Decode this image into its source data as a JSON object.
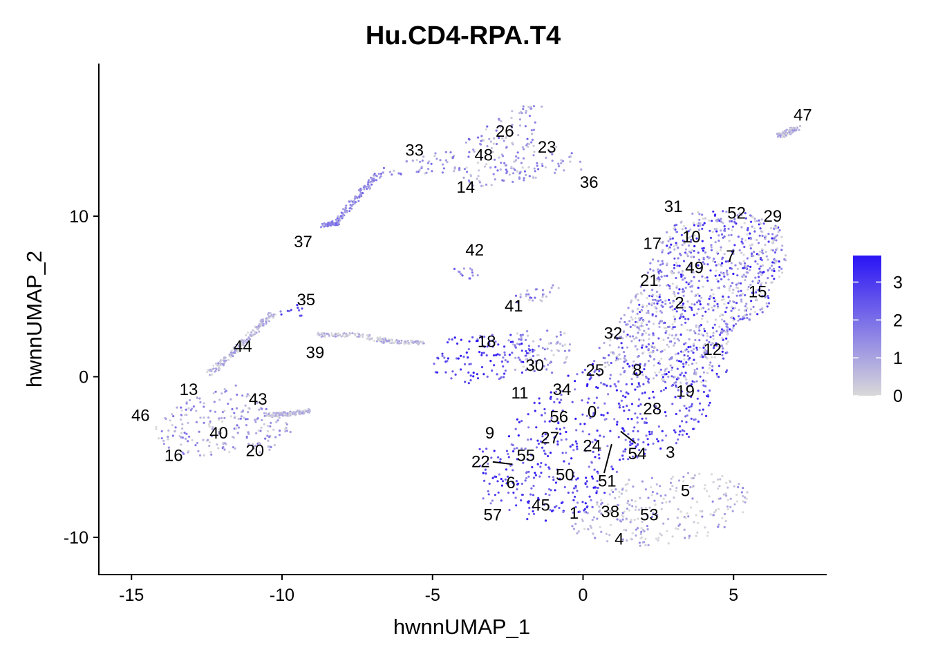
{
  "chart_data": {
    "type": "scatter",
    "title": "Hu.CD4-RPA.T4",
    "xlabel": "hwnnUMAP_1",
    "ylabel": "hwnnUMAP_2",
    "xlim": [
      -16.2,
      8.2
    ],
    "ylim": [
      -12.5,
      19.5
    ],
    "x_ticks": [
      -15,
      -10,
      -5,
      0,
      5
    ],
    "y_ticks": [
      -10,
      0,
      10
    ],
    "grid": false,
    "legend": {
      "position": "right",
      "type": "colorbar",
      "min": 0,
      "max": 3.7,
      "ticks": [
        0,
        1,
        2,
        3
      ],
      "color_low": "#d9d9d9",
      "color_high": "#2a14f5"
    },
    "cluster_labels": [
      {
        "label": "0",
        "x": 0.3,
        "y": -2.2
      },
      {
        "label": "1",
        "x": -0.3,
        "y": -8.5
      },
      {
        "label": "2",
        "x": 3.2,
        "y": 4.6
      },
      {
        "label": "3",
        "x": 2.9,
        "y": -4.7
      },
      {
        "label": "4",
        "x": 1.2,
        "y": -10.1
      },
      {
        "label": "5",
        "x": 3.4,
        "y": -7.1
      },
      {
        "label": "6",
        "x": -2.4,
        "y": -6.6
      },
      {
        "label": "7",
        "x": 4.9,
        "y": 7.5
      },
      {
        "label": "8",
        "x": 1.8,
        "y": 0.4
      },
      {
        "label": "9",
        "x": -3.1,
        "y": -3.5
      },
      {
        "label": "10",
        "x": 3.6,
        "y": 8.7
      },
      {
        "label": "11",
        "x": -2.1,
        "y": -1.0
      },
      {
        "label": "12",
        "x": 4.3,
        "y": 1.7
      },
      {
        "label": "13",
        "x": -13.1,
        "y": -0.8
      },
      {
        "label": "14",
        "x": -3.9,
        "y": 11.8
      },
      {
        "label": "15",
        "x": 5.8,
        "y": 5.3
      },
      {
        "label": "16",
        "x": -13.6,
        "y": -4.9
      },
      {
        "label": "17",
        "x": 2.3,
        "y": 8.3
      },
      {
        "label": "18",
        "x": -3.2,
        "y": 2.2
      },
      {
        "label": "19",
        "x": 3.4,
        "y": -0.9
      },
      {
        "label": "20",
        "x": -10.9,
        "y": -4.6
      },
      {
        "label": "21",
        "x": 2.2,
        "y": 6.0
      },
      {
        "label": "22",
        "x": -3.4,
        "y": -5.3
      },
      {
        "label": "23",
        "x": -1.2,
        "y": 14.3
      },
      {
        "label": "24",
        "x": 0.3,
        "y": -4.3
      },
      {
        "label": "25",
        "x": 0.4,
        "y": 0.4
      },
      {
        "label": "26",
        "x": -2.6,
        "y": 15.3
      },
      {
        "label": "27",
        "x": -1.1,
        "y": -3.8
      },
      {
        "label": "28",
        "x": 2.3,
        "y": -2.0
      },
      {
        "label": "29",
        "x": 6.3,
        "y": 10.0
      },
      {
        "label": "30",
        "x": -1.6,
        "y": 0.7
      },
      {
        "label": "31",
        "x": 3.0,
        "y": 10.6
      },
      {
        "label": "32",
        "x": 1.0,
        "y": 2.7
      },
      {
        "label": "33",
        "x": -5.6,
        "y": 14.1
      },
      {
        "label": "34",
        "x": -0.7,
        "y": -0.8
      },
      {
        "label": "35",
        "x": -9.2,
        "y": 4.8
      },
      {
        "label": "36",
        "x": 0.2,
        "y": 12.1
      },
      {
        "label": "37",
        "x": -9.3,
        "y": 8.4
      },
      {
        "label": "38",
        "x": 0.9,
        "y": -8.4
      },
      {
        "label": "39",
        "x": -8.9,
        "y": 1.5
      },
      {
        "label": "40",
        "x": -12.1,
        "y": -3.5
      },
      {
        "label": "41",
        "x": -2.3,
        "y": 4.4
      },
      {
        "label": "42",
        "x": -3.6,
        "y": 7.9
      },
      {
        "label": "43",
        "x": -10.8,
        "y": -1.4
      },
      {
        "label": "44",
        "x": -11.3,
        "y": 1.9
      },
      {
        "label": "45",
        "x": -1.4,
        "y": -8.0
      },
      {
        "label": "46",
        "x": -14.7,
        "y": -2.4
      },
      {
        "label": "47",
        "x": 7.3,
        "y": 16.3
      },
      {
        "label": "48",
        "x": -3.3,
        "y": 13.8
      },
      {
        "label": "49",
        "x": 3.7,
        "y": 6.8
      },
      {
        "label": "50",
        "x": -0.6,
        "y": -6.1
      },
      {
        "label": "51",
        "x": 0.8,
        "y": -6.5
      },
      {
        "label": "52",
        "x": 5.1,
        "y": 10.2
      },
      {
        "label": "53",
        "x": 2.2,
        "y": -8.6
      },
      {
        "label": "54",
        "x": 1.8,
        "y": -4.8
      },
      {
        "label": "55",
        "x": -1.9,
        "y": -4.9
      },
      {
        "label": "56",
        "x": -0.8,
        "y": -2.5
      },
      {
        "label": "57",
        "x": -3.0,
        "y": -8.6
      }
    ],
    "label_lines": [
      {
        "from_label": "22",
        "x1": -3.0,
        "y1": -5.3,
        "x2": -2.35,
        "y2": -5.45
      },
      {
        "from_label": "54",
        "x1": 1.25,
        "y1": -3.4,
        "x2": 1.75,
        "y2": -4.15
      },
      {
        "from_label": "51",
        "x1": 0.95,
        "y1": -4.2,
        "x2": 0.7,
        "y2": -6.0
      }
    ],
    "regions": [
      {
        "name": "main-body",
        "expr": 2.6,
        "poly": [
          [
            -2.7,
            -4.2
          ],
          [
            -2.0,
            -2.1
          ],
          [
            -0.8,
            -0.3
          ],
          [
            0.5,
            1.3
          ],
          [
            1.5,
            3.5
          ],
          [
            2.5,
            6.5
          ],
          [
            3.0,
            9.5
          ],
          [
            4.0,
            10.4
          ],
          [
            5.5,
            10.2
          ],
          [
            6.6,
            9.2
          ],
          [
            6.8,
            7.0
          ],
          [
            6.2,
            5.5
          ],
          [
            6.2,
            4.2
          ],
          [
            5.5,
            3.5
          ],
          [
            4.8,
            2.0
          ],
          [
            4.8,
            0.3
          ],
          [
            4.3,
            -0.8
          ],
          [
            4.2,
            -2.6
          ],
          [
            3.5,
            -3.9
          ],
          [
            2.0,
            -5.0
          ],
          [
            1.2,
            -5.9
          ],
          [
            0.8,
            -7.0
          ],
          [
            0.3,
            -8.6
          ],
          [
            -1.0,
            -9.0
          ],
          [
            -2.5,
            -8.8
          ],
          [
            -3.4,
            -7.5
          ],
          [
            -3.6,
            -5.5
          ],
          [
            -3.5,
            -4.2
          ]
        ]
      },
      {
        "name": "mixed-upper",
        "expr": 0.7,
        "poly": [
          [
            0.3,
            1.2
          ],
          [
            1.2,
            3.5
          ],
          [
            2.0,
            6.3
          ],
          [
            2.8,
            9.3
          ],
          [
            3.8,
            10.4
          ],
          [
            5.3,
            10.3
          ],
          [
            6.6,
            9.3
          ],
          [
            6.8,
            7.0
          ],
          [
            6.2,
            5.3
          ],
          [
            6.1,
            4.0
          ],
          [
            5.3,
            3.4
          ],
          [
            4.8,
            2.0
          ],
          [
            4.6,
            0.0
          ],
          [
            3.5,
            -0.6
          ],
          [
            2.0,
            -0.4
          ],
          [
            1.0,
            0.2
          ]
        ]
      },
      {
        "name": "bottom-lobe",
        "expr": 0.55,
        "poly": [
          [
            -0.3,
            -9.0
          ],
          [
            0.8,
            -7.2
          ],
          [
            1.6,
            -6.3
          ],
          [
            2.6,
            -6.1
          ],
          [
            3.8,
            -5.9
          ],
          [
            5.0,
            -6.2
          ],
          [
            5.5,
            -7.2
          ],
          [
            5.3,
            -8.6
          ],
          [
            4.6,
            -9.7
          ],
          [
            3.4,
            -10.3
          ],
          [
            1.8,
            -10.6
          ],
          [
            0.6,
            -10.2
          ],
          [
            -0.5,
            -9.7
          ]
        ]
      },
      {
        "name": "cluster-18",
        "expr": 2.8,
        "poly": [
          [
            -5.0,
            1.2
          ],
          [
            -4.5,
            2.5
          ],
          [
            -3.0,
            2.7
          ],
          [
            -2.0,
            2.6
          ],
          [
            -1.6,
            1.5
          ],
          [
            -1.8,
            0.3
          ],
          [
            -2.8,
            -0.3
          ],
          [
            -3.8,
            -0.4
          ],
          [
            -4.9,
            0.1
          ]
        ]
      },
      {
        "name": "cluster-30",
        "expr": 1.0,
        "poly": [
          [
            -2.3,
            0.3
          ],
          [
            -2.5,
            2.5
          ],
          [
            -1.2,
            3.3
          ],
          [
            -0.5,
            2.8
          ],
          [
            -0.3,
            1.2
          ],
          [
            -1.0,
            0.2
          ]
        ]
      },
      {
        "name": "left-island",
        "expr": 0.9,
        "poly": [
          [
            -14.2,
            -3.1
          ],
          [
            -13.5,
            -1.8
          ],
          [
            -12.5,
            -0.9
          ],
          [
            -11.7,
            0.0
          ],
          [
            -11.4,
            -0.7
          ],
          [
            -10.6,
            -1.7
          ],
          [
            -9.8,
            -2.8
          ],
          [
            -9.6,
            -3.5
          ],
          [
            -10.2,
            -4.6
          ],
          [
            -11.5,
            -4.9
          ],
          [
            -13.2,
            -4.9
          ],
          [
            -14.1,
            -4.2
          ]
        ]
      },
      {
        "name": "top-island",
        "expr": 1.1,
        "poly": [
          [
            -6.7,
            13.0
          ],
          [
            -6.2,
            13.4
          ],
          [
            -5.0,
            13.9
          ],
          [
            -4.2,
            14.2
          ],
          [
            -3.6,
            15.1
          ],
          [
            -2.6,
            16.4
          ],
          [
            -1.3,
            17.4
          ],
          [
            -1.5,
            15.8
          ],
          [
            -1.2,
            14.7
          ],
          [
            0.2,
            13.5
          ],
          [
            0.1,
            12.9
          ],
          [
            -1.2,
            12.6
          ],
          [
            -2.6,
            11.8
          ],
          [
            -3.8,
            11.8
          ],
          [
            -4.2,
            12.8
          ],
          [
            -5.7,
            12.5
          ],
          [
            -6.6,
            12.5
          ]
        ]
      },
      {
        "name": "cluster-41",
        "expr": 1.2,
        "poly": [
          [
            -2.3,
            5.0
          ],
          [
            -1.6,
            5.6
          ],
          [
            -0.8,
            5.9
          ],
          [
            -0.3,
            5.7
          ],
          [
            -1.2,
            4.9
          ],
          [
            -1.6,
            4.3
          ],
          [
            -2.3,
            4.5
          ]
        ]
      },
      {
        "name": "cluster-42",
        "expr": 1.6,
        "poly": [
          [
            -4.6,
            7.1
          ],
          [
            -4.1,
            7.2
          ],
          [
            -3.7,
            6.9
          ],
          [
            -3.4,
            6.1
          ],
          [
            -3.8,
            5.9
          ],
          [
            -4.2,
            6.5
          ],
          [
            -4.6,
            6.7
          ]
        ]
      },
      {
        "name": "cluster-35",
        "expr": 2.3,
        "poly": [
          [
            -10.1,
            4.1
          ],
          [
            -9.3,
            4.6
          ],
          [
            -9.0,
            4.1
          ],
          [
            -8.9,
            3.8
          ],
          [
            -9.6,
            3.6
          ],
          [
            -10.2,
            3.7
          ]
        ]
      }
    ],
    "strands": [
      {
        "name": "strand-37",
        "expr": 1.5,
        "points": [
          [
            -6.8,
            12.6
          ],
          [
            -7.5,
            11.2
          ],
          [
            -8.2,
            9.6
          ],
          [
            -8.6,
            9.4
          ]
        ]
      },
      {
        "name": "strand-44",
        "expr": 0.6,
        "points": [
          [
            -12.4,
            0.2
          ],
          [
            -11.6,
            1.6
          ],
          [
            -10.9,
            2.9
          ],
          [
            -10.3,
            3.9
          ]
        ]
      },
      {
        "name": "strand-39",
        "expr": 0.5,
        "points": [
          [
            -8.8,
            2.6
          ],
          [
            -7.5,
            2.6
          ],
          [
            -6.5,
            2.2
          ],
          [
            -5.2,
            2.1
          ]
        ]
      },
      {
        "name": "strand-43",
        "expr": 0.6,
        "points": [
          [
            -10.5,
            -2.4
          ],
          [
            -9.7,
            -2.3
          ],
          [
            -9.0,
            -2.1
          ]
        ]
      },
      {
        "name": "strand-47",
        "expr": 0.6,
        "points": [
          [
            6.5,
            15.0
          ],
          [
            6.8,
            15.2
          ],
          [
            7.1,
            15.5
          ]
        ]
      }
    ]
  }
}
